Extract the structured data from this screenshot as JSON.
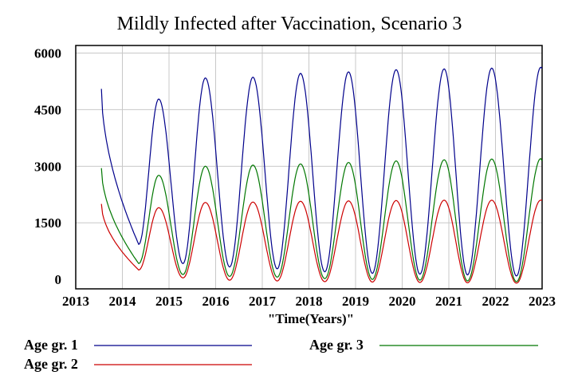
{
  "chart_data": {
    "type": "line",
    "title": "Mildly Infected  after Vaccination, Scenario 3",
    "xlabel": "\"Time(Years)\"",
    "ylabel": "",
    "xlim": [
      2013,
      2023
    ],
    "ylim": [
      -250,
      6200
    ],
    "x_ticks": [
      "2013",
      "2014",
      "2015",
      "2016",
      "2017",
      "2018",
      "2019",
      "2020",
      "2021",
      "2022",
      "2023"
    ],
    "y_ticks": [
      "6000",
      "4500",
      "3000",
      "1500",
      "0"
    ],
    "grid": true,
    "legend_position": "bottom",
    "series": [
      {
        "name": "Age gr. 1",
        "color": "#00008b",
        "start": {
          "x": 2013.55,
          "y": 5050
        },
        "first_trough": {
          "x": 2014.35,
          "y": 930
        },
        "peaks": [
          {
            "x": 2014.78,
            "y": 4780
          },
          {
            "x": 2015.78,
            "y": 5340
          },
          {
            "x": 2016.8,
            "y": 5360
          },
          {
            "x": 2017.82,
            "y": 5460
          },
          {
            "x": 2018.85,
            "y": 5500
          },
          {
            "x": 2019.87,
            "y": 5560
          },
          {
            "x": 2020.9,
            "y": 5580
          },
          {
            "x": 2021.92,
            "y": 5600
          },
          {
            "x": 2022.97,
            "y": 5620
          }
        ],
        "troughs": [
          {
            "x": 2015.3,
            "y": 420
          },
          {
            "x": 2016.3,
            "y": 330
          },
          {
            "x": 2017.32,
            "y": 280
          },
          {
            "x": 2018.34,
            "y": 200
          },
          {
            "x": 2019.36,
            "y": 160
          },
          {
            "x": 2020.38,
            "y": 140
          },
          {
            "x": 2021.4,
            "y": 120
          },
          {
            "x": 2022.45,
            "y": 90
          }
        ],
        "end": {
          "x": 2023,
          "y": 5600
        }
      },
      {
        "name": "Age gr. 2",
        "color": "#cc0000",
        "start": {
          "x": 2013.55,
          "y": 2000
        },
        "first_trough": {
          "x": 2014.35,
          "y": 250
        },
        "peaks": [
          {
            "x": 2014.78,
            "y": 1900
          },
          {
            "x": 2015.78,
            "y": 2040
          },
          {
            "x": 2016.8,
            "y": 2050
          },
          {
            "x": 2017.82,
            "y": 2070
          },
          {
            "x": 2018.85,
            "y": 2080
          },
          {
            "x": 2019.87,
            "y": 2090
          },
          {
            "x": 2020.9,
            "y": 2100
          },
          {
            "x": 2021.92,
            "y": 2100
          },
          {
            "x": 2022.97,
            "y": 2100
          }
        ],
        "troughs": [
          {
            "x": 2015.3,
            "y": 40
          },
          {
            "x": 2016.3,
            "y": -20
          },
          {
            "x": 2017.32,
            "y": -40
          },
          {
            "x": 2018.34,
            "y": -60
          },
          {
            "x": 2019.36,
            "y": -70
          },
          {
            "x": 2020.38,
            "y": -80
          },
          {
            "x": 2021.4,
            "y": -90
          },
          {
            "x": 2022.45,
            "y": -100
          }
        ],
        "end": {
          "x": 2023,
          "y": 2100
        }
      },
      {
        "name": "Age gr. 3",
        "color": "#007700",
        "start": {
          "x": 2013.55,
          "y": 2950
        },
        "first_trough": {
          "x": 2014.35,
          "y": 420
        },
        "peaks": [
          {
            "x": 2014.78,
            "y": 2760
          },
          {
            "x": 2015.78,
            "y": 3000
          },
          {
            "x": 2016.8,
            "y": 3030
          },
          {
            "x": 2017.82,
            "y": 3060
          },
          {
            "x": 2018.85,
            "y": 3100
          },
          {
            "x": 2019.87,
            "y": 3140
          },
          {
            "x": 2020.9,
            "y": 3170
          },
          {
            "x": 2021.92,
            "y": 3190
          },
          {
            "x": 2022.97,
            "y": 3200
          }
        ],
        "troughs": [
          {
            "x": 2015.3,
            "y": 130
          },
          {
            "x": 2016.3,
            "y": 80
          },
          {
            "x": 2017.32,
            "y": 60
          },
          {
            "x": 2018.34,
            "y": 20
          },
          {
            "x": 2019.36,
            "y": 0
          },
          {
            "x": 2020.38,
            "y": -20
          },
          {
            "x": 2021.4,
            "y": -40
          },
          {
            "x": 2022.45,
            "y": -60
          }
        ],
        "end": {
          "x": 2023,
          "y": 3150
        }
      }
    ]
  }
}
